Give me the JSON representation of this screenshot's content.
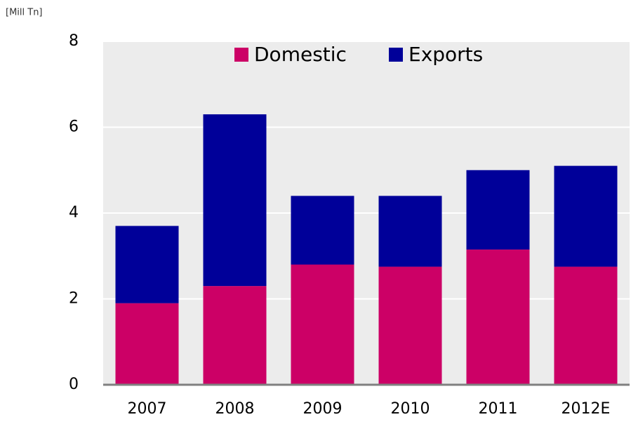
{
  "chart_data": {
    "type": "stacked_bar",
    "unit_label": "[Mill Tn]",
    "categories": [
      "2007",
      "2008",
      "2009",
      "2010",
      "2011",
      "2012E"
    ],
    "series": [
      {
        "name": "Domestic",
        "color": "#cc0066",
        "values": [
          1.9,
          2.3,
          2.8,
          2.75,
          3.15,
          2.75
        ]
      },
      {
        "name": "Exports",
        "color": "#000099",
        "values": [
          1.8,
          4.0,
          1.6,
          1.65,
          1.85,
          2.35
        ]
      }
    ],
    "ylim": [
      0,
      8
    ],
    "yticks": [
      0,
      2,
      4,
      6,
      8
    ],
    "grid": true,
    "legend": "top"
  }
}
